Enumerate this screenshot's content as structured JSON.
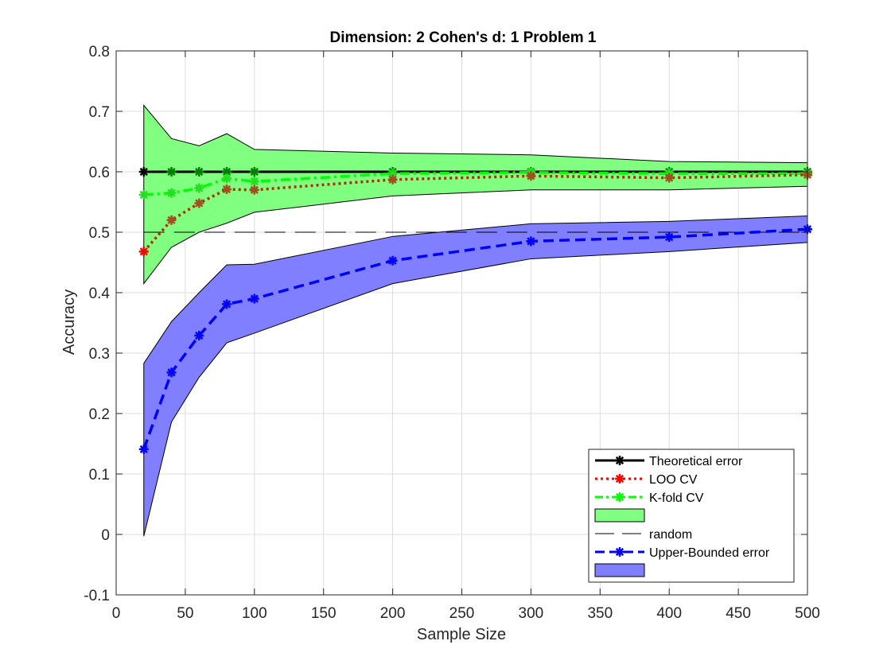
{
  "chart_data": {
    "type": "line",
    "title": "Dimension: 2 Cohen's d: 1 Problem 1",
    "xlabel": "Sample Size",
    "ylabel": "Accuracy",
    "xlim": [
      0,
      500
    ],
    "ylim": [
      -0.1,
      0.8
    ],
    "xticks": [
      0,
      50,
      100,
      150,
      200,
      250,
      300,
      350,
      400,
      450,
      500
    ],
    "yticks": [
      -0.1,
      0,
      0.1,
      0.2,
      0.3,
      0.4,
      0.5,
      0.6,
      0.7,
      0.8
    ],
    "xtick_labels": [
      "0",
      "50",
      "100",
      "150",
      "200",
      "250",
      "300",
      "350",
      "400",
      "450",
      "500"
    ],
    "ytick_labels": [
      "-0.1",
      "0",
      "0.1",
      "0.2",
      "0.3",
      "0.4",
      "0.5",
      "0.6",
      "0.7",
      "0.8"
    ],
    "grid": true,
    "legend_position": "bottom-right",
    "x": [
      20,
      40,
      60,
      80,
      100,
      200,
      300,
      400,
      500
    ],
    "series": [
      {
        "name": "Theoretical error",
        "kind": "line",
        "color": "#000000",
        "dash": "solid",
        "marker": "star",
        "values": [
          0.6,
          0.6,
          0.6,
          0.6,
          0.6,
          0.6,
          0.6,
          0.6,
          0.6
        ]
      },
      {
        "name": "LOO CV",
        "kind": "line",
        "color": "#ff0000",
        "dash": "dotted",
        "marker": "star",
        "values": [
          0.468,
          0.52,
          0.548,
          0.571,
          0.57,
          0.587,
          0.593,
          0.59,
          0.595
        ]
      },
      {
        "name": "K-fold CV",
        "kind": "line",
        "color": "#00ff00",
        "dash": "dashdot",
        "marker": "star",
        "values": [
          0.562,
          0.565,
          0.573,
          0.589,
          0.584,
          0.597,
          0.599,
          0.597,
          0.597
        ]
      },
      {
        "name": "",
        "kind": "band",
        "color": "#80ff80",
        "upper": [
          0.71,
          0.655,
          0.643,
          0.663,
          0.637,
          0.631,
          0.628,
          0.617,
          0.615
        ],
        "lower": [
          0.415,
          0.475,
          0.5,
          0.515,
          0.533,
          0.56,
          0.57,
          0.57,
          0.576
        ]
      },
      {
        "name": "random",
        "kind": "line",
        "color": "#000000",
        "dash": "longdash",
        "marker": "none",
        "x": [
          20,
          500
        ],
        "values": [
          0.5,
          0.5
        ]
      },
      {
        "name": "Upper-Bounded error",
        "kind": "line",
        "color": "#0000ff",
        "dash": "dashed",
        "marker": "star",
        "values": [
          0.141,
          0.268,
          0.329,
          0.381,
          0.39,
          0.453,
          0.485,
          0.492,
          0.505
        ]
      },
      {
        "name": "",
        "kind": "band",
        "color": "#7f7fff",
        "upper": [
          0.283,
          0.352,
          0.4,
          0.446,
          0.447,
          0.493,
          0.514,
          0.518,
          0.527
        ],
        "lower": [
          -0.003,
          0.186,
          0.26,
          0.317,
          0.333,
          0.415,
          0.456,
          0.468,
          0.483
        ]
      }
    ]
  }
}
